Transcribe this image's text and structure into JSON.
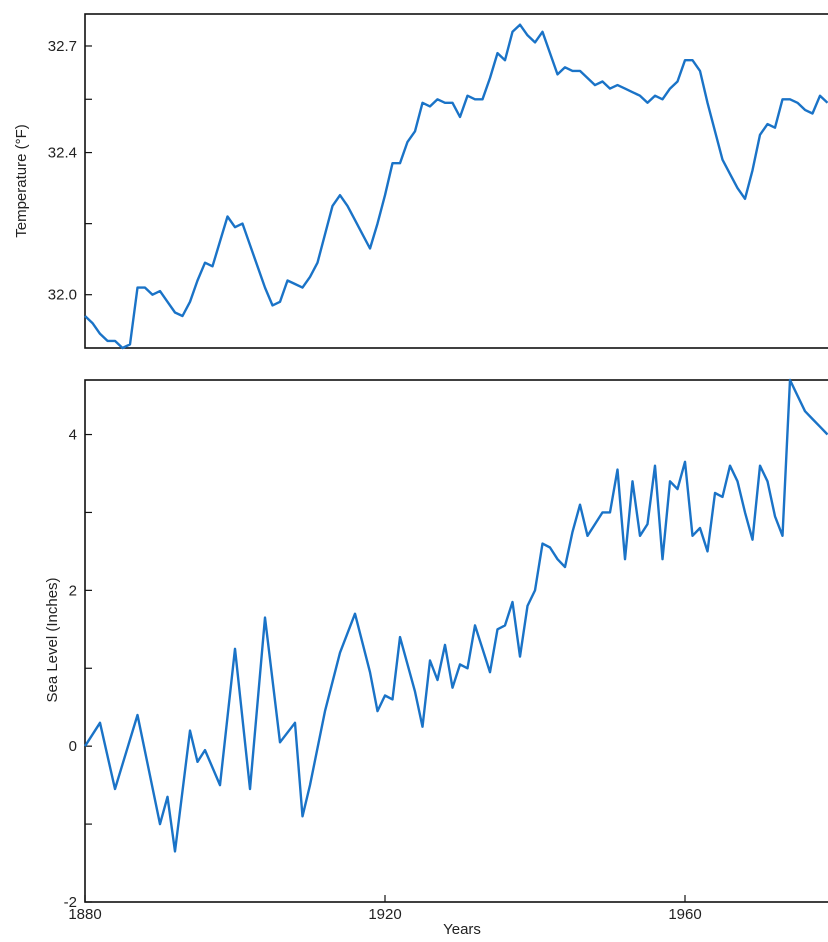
{
  "chart_data": [
    {
      "type": "line",
      "ylabel": "Temperature (°F)",
      "ylim": [
        31.85,
        32.79
      ],
      "xlim": [
        1880,
        1980
      ],
      "yticks": [
        32.0,
        32.4,
        32.7
      ],
      "ytick_labels": [
        "32.0",
        "32.4",
        "32.7"
      ],
      "series_color": "#1a73c7",
      "x": [
        1880,
        1881,
        1882,
        1883,
        1884,
        1885,
        1886,
        1887,
        1888,
        1889,
        1890,
        1891,
        1892,
        1893,
        1894,
        1895,
        1896,
        1897,
        1898,
        1899,
        1900,
        1901,
        1902,
        1903,
        1904,
        1905,
        1906,
        1907,
        1908,
        1909,
        1910,
        1911,
        1912,
        1913,
        1914,
        1915,
        1916,
        1917,
        1918,
        1919,
        1920,
        1921,
        1922,
        1923,
        1924,
        1925,
        1926,
        1927,
        1928,
        1929,
        1930,
        1931,
        1932,
        1933,
        1934,
        1935,
        1936,
        1937,
        1938,
        1939,
        1940,
        1941,
        1942,
        1943,
        1944,
        1945,
        1946,
        1947,
        1948,
        1949,
        1950,
        1951,
        1952,
        1953,
        1954,
        1955,
        1956,
        1957,
        1958,
        1959,
        1960,
        1961,
        1962,
        1963,
        1964,
        1965,
        1966,
        1967,
        1968,
        1969,
        1970,
        1971,
        1972,
        1973,
        1974,
        1975,
        1976,
        1977,
        1978,
        1979
      ],
      "y": [
        31.94,
        31.92,
        31.89,
        31.87,
        31.87,
        31.85,
        31.86,
        32.02,
        32.02,
        32.0,
        32.01,
        31.98,
        31.95,
        31.94,
        31.98,
        32.04,
        32.09,
        32.08,
        32.15,
        32.22,
        32.19,
        32.2,
        32.14,
        32.08,
        32.02,
        31.97,
        31.98,
        32.04,
        32.03,
        32.02,
        32.05,
        32.09,
        32.17,
        32.25,
        32.28,
        32.25,
        32.21,
        32.17,
        32.13,
        32.2,
        32.28,
        32.37,
        32.37,
        32.43,
        32.46,
        32.54,
        32.53,
        32.55,
        32.54,
        32.54,
        32.5,
        32.56,
        32.55,
        32.55,
        32.61,
        32.68,
        32.66,
        32.74,
        32.76,
        32.73,
        32.71,
        32.74,
        32.68,
        32.62,
        32.64,
        32.63,
        32.63,
        32.61,
        32.59,
        32.6,
        32.58,
        32.59,
        32.58,
        32.57,
        32.56,
        32.54,
        32.56,
        32.55,
        32.58,
        32.6,
        32.66,
        32.66,
        32.63,
        32.54,
        32.46,
        32.38,
        32.34,
        32.3,
        32.27,
        32.35,
        32.45,
        32.48,
        32.47,
        32.55,
        32.55,
        32.54,
        32.52,
        32.51,
        32.56,
        32.54
      ]
    },
    {
      "type": "line",
      "xlabel": "Years",
      "ylabel": "Sea Level (Inches)",
      "ylim": [
        -2.0,
        4.7
      ],
      "xlim": [
        1880,
        1980
      ],
      "yticks": [
        -2,
        0,
        2,
        4
      ],
      "ytick_labels": [
        "-2",
        "0",
        "2",
        "4"
      ],
      "xticks": [
        1880,
        1920,
        1960
      ],
      "xtick_labels": [
        "1880",
        "1920",
        "1960"
      ],
      "series_color": "#1a73c7",
      "x": [
        1880,
        1882,
        1884,
        1887,
        1890,
        1891,
        1892,
        1894,
        1895,
        1896,
        1898,
        1900,
        1902,
        1904,
        1906,
        1908,
        1909,
        1910,
        1912,
        1914,
        1916,
        1918,
        1919,
        1920,
        1921,
        1922,
        1924,
        1925,
        1926,
        1927,
        1928,
        1929,
        1930,
        1931,
        1932,
        1933,
        1934,
        1935,
        1936,
        1937,
        1938,
        1939,
        1940,
        1941,
        1942,
        1943,
        1944,
        1945,
        1946,
        1947,
        1948,
        1949,
        1950,
        1951,
        1952,
        1953,
        1954,
        1955,
        1956,
        1957,
        1958,
        1959,
        1960,
        1961,
        1962,
        1963,
        1964,
        1965,
        1966,
        1967,
        1968,
        1969,
        1970,
        1971,
        1972,
        1973,
        1974,
        1975,
        1976,
        1977,
        1978,
        1979
      ],
      "y": [
        0.0,
        0.3,
        -0.55,
        0.4,
        -1.0,
        -0.65,
        -1.35,
        0.2,
        -0.2,
        -0.05,
        -0.5,
        1.25,
        -0.55,
        1.65,
        0.05,
        0.3,
        -0.9,
        -0.5,
        0.45,
        1.2,
        1.7,
        0.95,
        0.45,
        0.65,
        0.6,
        1.4,
        0.7,
        0.25,
        1.1,
        0.85,
        1.3,
        0.75,
        1.05,
        1.0,
        1.55,
        1.25,
        0.95,
        1.5,
        1.55,
        1.85,
        1.15,
        1.8,
        2.0,
        2.6,
        2.55,
        2.4,
        2.3,
        2.75,
        3.1,
        2.7,
        2.85,
        3.0,
        3.0,
        3.55,
        2.4,
        3.4,
        2.7,
        2.85,
        3.6,
        2.4,
        3.4,
        3.3,
        3.65,
        2.7,
        2.8,
        2.5,
        3.25,
        3.2,
        3.6,
        3.4,
        3.0,
        2.65,
        3.6,
        3.4,
        2.95,
        2.7,
        4.7,
        4.5,
        4.3,
        4.2,
        4.1,
        4.0
      ]
    }
  ]
}
